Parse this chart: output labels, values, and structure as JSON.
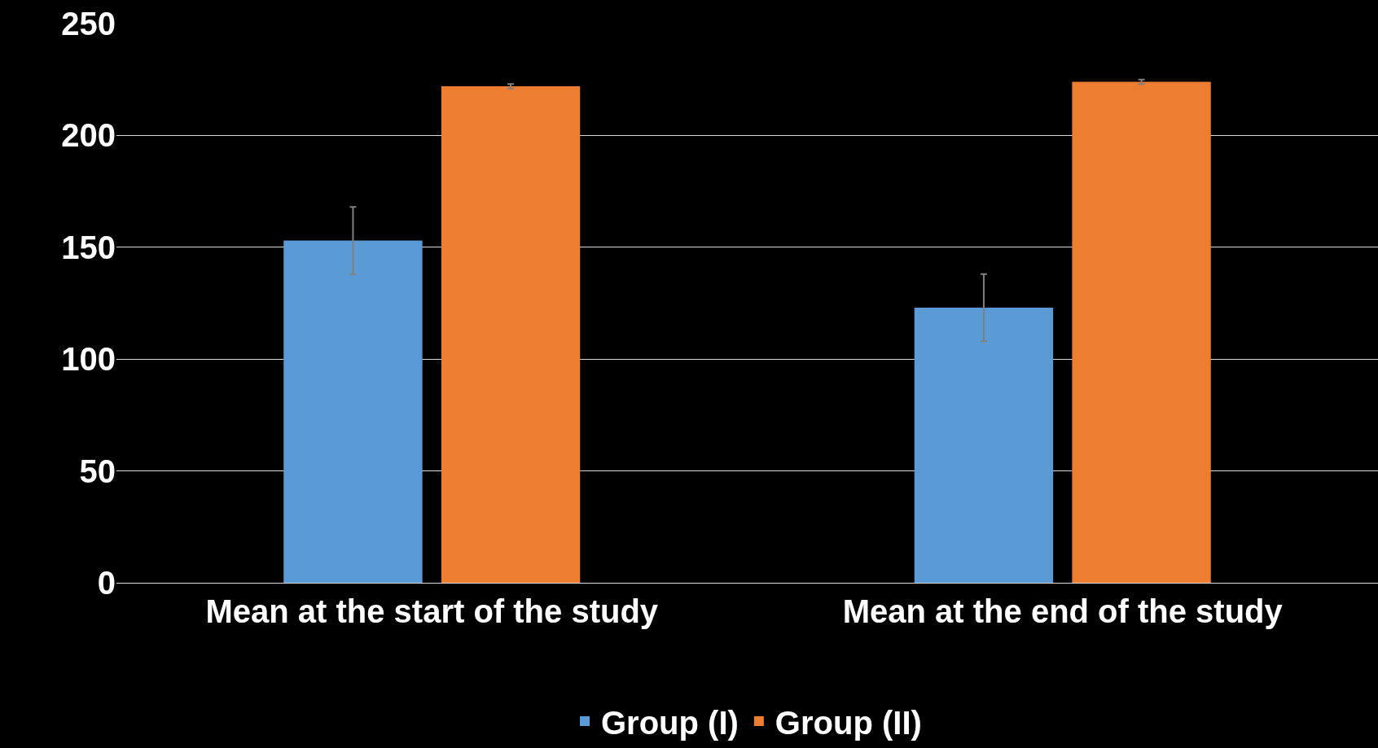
{
  "chart_data": {
    "type": "bar",
    "categories": [
      "Mean at the start of the study",
      "Mean at the end of the study"
    ],
    "series": [
      {
        "name": "Group (I)",
        "color": "#5b9bd5",
        "values": [
          153,
          123
        ],
        "errors": [
          15,
          15
        ]
      },
      {
        "name": "Group (II)",
        "color": "#ed7d31",
        "values": [
          222,
          224
        ],
        "errors": [
          1,
          1
        ]
      }
    ],
    "ylim": [
      0,
      250
    ],
    "yticks": [
      0,
      50,
      100,
      150,
      200,
      250
    ],
    "grid": "y",
    "legend": "bottom"
  }
}
